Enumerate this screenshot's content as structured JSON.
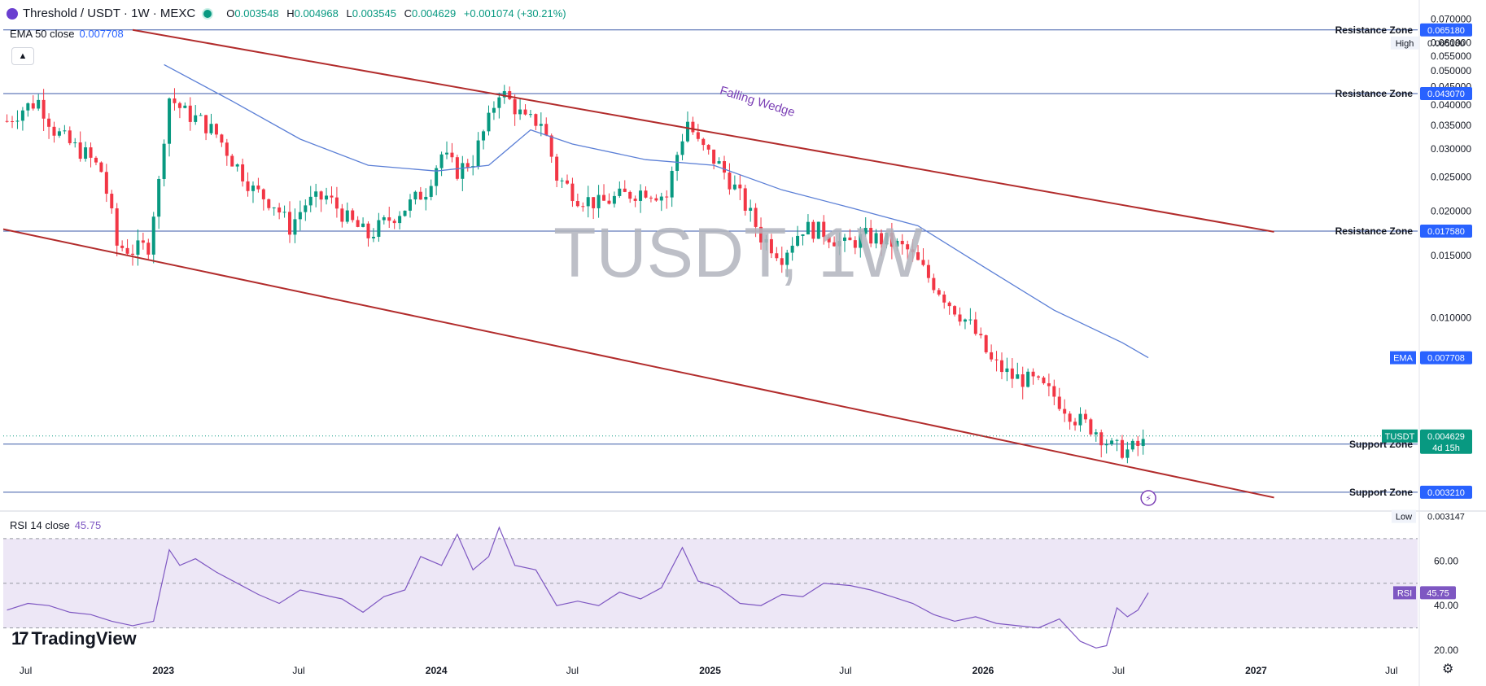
{
  "header": {
    "title": "Threshold / USDT · 1W · MEXC",
    "ohlc": [
      {
        "key": "O",
        "value": "0.003548"
      },
      {
        "key": "H",
        "value": "0.004968"
      },
      {
        "key": "L",
        "value": "0.003545"
      },
      {
        "key": "C",
        "value": "0.004629"
      }
    ],
    "change": "+0.001074 (+30.21%)"
  },
  "ema_legend": {
    "label": "EMA 50 close",
    "value": "0.007708"
  },
  "rsi_legend": {
    "label": "RSI 14 close",
    "value": "45.75"
  },
  "watermark": "TUSDT, 1W",
  "branding": {
    "name": "TradingView",
    "mark": "17"
  },
  "colors": {
    "up": "#089981",
    "down": "#f23645",
    "ema": "#5b7fd6",
    "rsi": "#7e57c2",
    "trend": "#b22c2c",
    "level": "#3b5aa8",
    "price_tag": "#089981",
    "axis_tag": "#2962ff",
    "rsi_band": "#ede7f6",
    "annotation": "#7b3fb5"
  },
  "chart_data": [
    {
      "type": "candlestick",
      "title": "Threshold / USDT · 1W · MEXC",
      "y_axis": {
        "ticks": [
          "0.070000",
          "0.060000",
          "0.055000",
          "0.050000",
          "0.045000",
          "0.040000",
          "0.035000",
          "0.030000",
          "0.025000",
          "0.020000",
          "0.015000",
          "0.010000"
        ],
        "tick_values": [
          0.07,
          0.06,
          0.055,
          0.05,
          0.045,
          0.04,
          0.035,
          0.03,
          0.025,
          0.02,
          0.015,
          0.01
        ],
        "scale": "log",
        "range": [
          0.0029,
          0.072
        ]
      },
      "x_axis": {
        "ticks": [
          {
            "label": "Jul",
            "date": "2022-07-01",
            "bold": false
          },
          {
            "label": "2023",
            "date": "2023-01-01",
            "bold": true
          },
          {
            "label": "Jul",
            "date": "2023-07-01",
            "bold": false
          },
          {
            "label": "2024",
            "date": "2024-01-01",
            "bold": true
          },
          {
            "label": "Jul",
            "date": "2024-07-01",
            "bold": false
          },
          {
            "label": "2025",
            "date": "2025-01-01",
            "bold": true
          },
          {
            "label": "Jul",
            "date": "2025-07-01",
            "bold": false
          },
          {
            "label": "2026",
            "date": "2026-01-01",
            "bold": true
          },
          {
            "label": "Jul",
            "date": "2026-07-01",
            "bold": false
          },
          {
            "label": "2027",
            "date": "2027-01-01",
            "bold": true
          },
          {
            "label": "Jul",
            "date": "2027-07-01",
            "bold": false
          }
        ],
        "range": [
          "2022-06-01",
          "2027-08-05"
        ]
      },
      "price_series": [
        [
          "2022-06-06",
          0.036
        ],
        [
          "2022-06-27",
          0.039
        ],
        [
          "2022-07-18",
          0.041
        ],
        [
          "2022-08-08",
          0.034
        ],
        [
          "2022-08-29",
          0.031
        ],
        [
          "2022-09-19",
          0.029
        ],
        [
          "2022-10-10",
          0.026
        ],
        [
          "2022-10-31",
          0.016
        ],
        [
          "2022-11-21",
          0.0155
        ],
        [
          "2022-12-12",
          0.016
        ],
        [
          "2022-12-26",
          0.024
        ],
        [
          "2023-01-09",
          0.042
        ],
        [
          "2023-01-30",
          0.038
        ],
        [
          "2023-02-20",
          0.036
        ],
        [
          "2023-03-13",
          0.033
        ],
        [
          "2023-04-03",
          0.028
        ],
        [
          "2023-05-01",
          0.023
        ],
        [
          "2023-05-29",
          0.021
        ],
        [
          "2023-06-19",
          0.018
        ],
        [
          "2023-07-10",
          0.021
        ],
        [
          "2023-08-07",
          0.022
        ],
        [
          "2023-09-04",
          0.019
        ],
        [
          "2023-10-02",
          0.017
        ],
        [
          "2023-10-30",
          0.019
        ],
        [
          "2023-11-27",
          0.021
        ],
        [
          "2023-12-18",
          0.023
        ],
        [
          "2024-01-08",
          0.029
        ],
        [
          "2024-01-29",
          0.026
        ],
        [
          "2024-02-19",
          0.028
        ],
        [
          "2024-03-11",
          0.036
        ],
        [
          "2024-03-25",
          0.044
        ],
        [
          "2024-04-08",
          0.041
        ],
        [
          "2024-04-29",
          0.036
        ],
        [
          "2024-05-20",
          0.036
        ],
        [
          "2024-06-10",
          0.025
        ],
        [
          "2024-07-08",
          0.022
        ],
        [
          "2024-08-05",
          0.021
        ],
        [
          "2024-09-02",
          0.022
        ],
        [
          "2024-10-07",
          0.023
        ],
        [
          "2024-11-04",
          0.022
        ],
        [
          "2024-12-02",
          0.036
        ],
        [
          "2024-12-16",
          0.031
        ],
        [
          "2025-01-13",
          0.027
        ],
        [
          "2025-02-10",
          0.022
        ],
        [
          "2025-03-10",
          0.017
        ],
        [
          "2025-04-07",
          0.015
        ],
        [
          "2025-05-05",
          0.018
        ],
        [
          "2025-06-02",
          0.0175
        ],
        [
          "2025-06-30",
          0.016
        ],
        [
          "2025-07-28",
          0.017
        ],
        [
          "2025-08-25",
          0.0165
        ],
        [
          "2025-09-22",
          0.0155
        ],
        [
          "2025-10-20",
          0.013
        ],
        [
          "2025-11-17",
          0.011
        ],
        [
          "2025-12-15",
          0.0095
        ],
        [
          "2026-01-12",
          0.0075
        ],
        [
          "2026-02-09",
          0.0068
        ],
        [
          "2026-03-09",
          0.0066
        ],
        [
          "2026-04-06",
          0.006
        ],
        [
          "2026-05-04",
          0.0052
        ],
        [
          "2026-06-01",
          0.0048
        ],
        [
          "2026-06-22",
          0.0043
        ],
        [
          "2026-07-13",
          0.0042
        ],
        [
          "2026-08-03",
          0.0044
        ],
        [
          "2026-08-10",
          0.004629
        ]
      ],
      "ema_series": [
        [
          "2023-01-02",
          0.052
        ],
        [
          "2023-04-03",
          0.041
        ],
        [
          "2023-07-03",
          0.032
        ],
        [
          "2023-10-02",
          0.027
        ],
        [
          "2024-01-01",
          0.026
        ],
        [
          "2024-03-11",
          0.027
        ],
        [
          "2024-05-06",
          0.034
        ],
        [
          "2024-07-01",
          0.031
        ],
        [
          "2024-10-07",
          0.028
        ],
        [
          "2025-01-06",
          0.027
        ],
        [
          "2025-04-07",
          0.023
        ],
        [
          "2025-07-07",
          0.0205
        ],
        [
          "2025-10-06",
          0.0182
        ],
        [
          "2026-01-05",
          0.0138
        ],
        [
          "2026-04-06",
          0.0105
        ],
        [
          "2026-07-06",
          0.0085
        ],
        [
          "2026-08-10",
          0.007708
        ]
      ],
      "levels": [
        {
          "label": "Resistance Zone",
          "value": 0.06518,
          "tag": "0.065180",
          "extra_tag": "High"
        },
        {
          "label": "Resistance Zone",
          "value": 0.04307,
          "tag": "0.043070"
        },
        {
          "label": "Resistance Zone",
          "value": 0.01758,
          "tag": "0.017580"
        },
        {
          "label": "Support Zone",
          "value": 0.00439,
          "tag": ""
        },
        {
          "label": "Support Zone",
          "value": 0.00321,
          "tag": "0.003210"
        }
      ],
      "trendlines": [
        {
          "from": [
            "2022-11-21",
            0.0652
          ],
          "to": [
            "2027-01-25",
            0.0175
          ]
        },
        {
          "from": [
            "2022-06-01",
            0.0178
          ],
          "to": [
            "2027-01-25",
            0.0031
          ]
        }
      ],
      "annotation": {
        "text": "Falling Wedge",
        "at": [
          "2025-01-13",
          0.043
        ]
      },
      "price_tags": [
        {
          "name": "TUSDT",
          "value": "0.004629",
          "countdown": "4d 15h"
        },
        {
          "name": "EMA",
          "value": "0.007708"
        },
        {
          "name": "Low",
          "value": "0.003147"
        }
      ]
    },
    {
      "type": "line",
      "title": "RSI 14 close",
      "y_axis": {
        "ticks": [
          "60.00",
          "40.00",
          "20.00"
        ],
        "tick_values": [
          60,
          40,
          20
        ],
        "range": [
          16,
          78
        ]
      },
      "bands": {
        "upper": 70,
        "middle": 50,
        "lower": 30
      },
      "current": "45.75",
      "series": [
        [
          "2022-06-06",
          38
        ],
        [
          "2022-07-04",
          41
        ],
        [
          "2022-08-01",
          40
        ],
        [
          "2022-08-29",
          37
        ],
        [
          "2022-09-26",
          36
        ],
        [
          "2022-10-24",
          33
        ],
        [
          "2022-11-21",
          31
        ],
        [
          "2022-12-19",
          33
        ],
        [
          "2023-01-09",
          65
        ],
        [
          "2023-01-23",
          58
        ],
        [
          "2023-02-13",
          61
        ],
        [
          "2023-03-13",
          55
        ],
        [
          "2023-04-10",
          50
        ],
        [
          "2023-05-08",
          45
        ],
        [
          "2023-06-05",
          41
        ],
        [
          "2023-07-03",
          47
        ],
        [
          "2023-07-31",
          45
        ],
        [
          "2023-08-28",
          43
        ],
        [
          "2023-09-25",
          37
        ],
        [
          "2023-10-23",
          44
        ],
        [
          "2023-11-20",
          47
        ],
        [
          "2023-12-11",
          62
        ],
        [
          "2024-01-08",
          58
        ],
        [
          "2024-01-29",
          72
        ],
        [
          "2024-02-19",
          56
        ],
        [
          "2024-03-11",
          62
        ],
        [
          "2024-03-25",
          75
        ],
        [
          "2024-04-15",
          58
        ],
        [
          "2024-05-13",
          56
        ],
        [
          "2024-06-10",
          40
        ],
        [
          "2024-07-08",
          42
        ],
        [
          "2024-08-05",
          40
        ],
        [
          "2024-09-02",
          46
        ],
        [
          "2024-09-30",
          43
        ],
        [
          "2024-10-28",
          48
        ],
        [
          "2024-11-25",
          66
        ],
        [
          "2024-12-16",
          51
        ],
        [
          "2025-01-13",
          48
        ],
        [
          "2025-02-10",
          41
        ],
        [
          "2025-03-10",
          40
        ],
        [
          "2025-04-07",
          45
        ],
        [
          "2025-05-05",
          44
        ],
        [
          "2025-06-02",
          50
        ],
        [
          "2025-07-07",
          49
        ],
        [
          "2025-08-04",
          47
        ],
        [
          "2025-09-01",
          44
        ],
        [
          "2025-09-29",
          41
        ],
        [
          "2025-10-27",
          36
        ],
        [
          "2025-11-24",
          33
        ],
        [
          "2025-12-22",
          35
        ],
        [
          "2026-01-19",
          32
        ],
        [
          "2026-02-16",
          31
        ],
        [
          "2026-03-16",
          30
        ],
        [
          "2026-04-13",
          34
        ],
        [
          "2026-05-11",
          24
        ],
        [
          "2026-06-01",
          21
        ],
        [
          "2026-06-15",
          22
        ],
        [
          "2026-06-29",
          39
        ],
        [
          "2026-07-13",
          35
        ],
        [
          "2026-07-27",
          38
        ],
        [
          "2026-08-10",
          45.75
        ]
      ]
    }
  ]
}
